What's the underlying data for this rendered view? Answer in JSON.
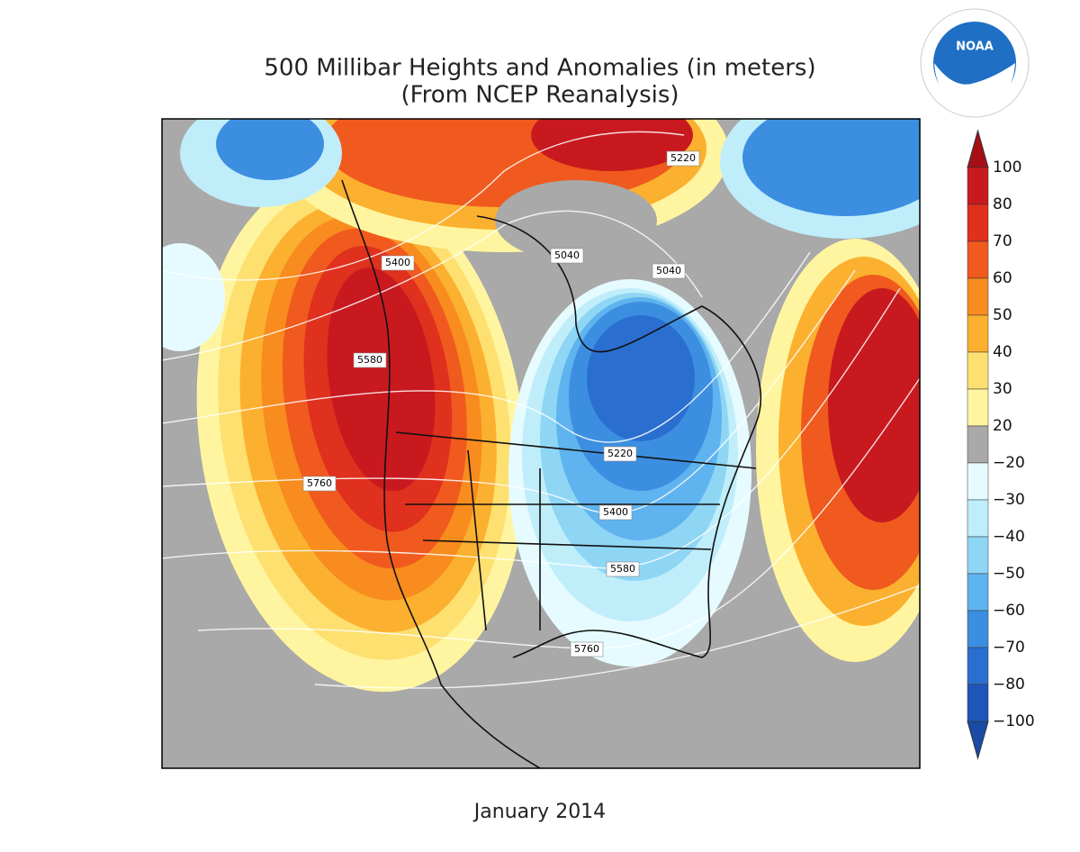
{
  "header": {
    "title": "500 Millibar Heights and Anomalies (in meters)",
    "subtitle": "(From NCEP Reanalysis)"
  },
  "logo": {
    "text": "NOAA"
  },
  "colorbar": {
    "labels": [
      "100",
      "80",
      "70",
      "60",
      "50",
      "40",
      "30",
      "20",
      "−20",
      "−30",
      "−40",
      "−50",
      "−60",
      "−70",
      "−80",
      "−100"
    ]
  },
  "contour_labels": [
    "5220",
    "5040",
    "5040",
    "5400",
    "5580",
    "5760",
    "5220",
    "5400",
    "5580",
    "5760"
  ],
  "footer": {
    "date": "January 2014"
  }
}
